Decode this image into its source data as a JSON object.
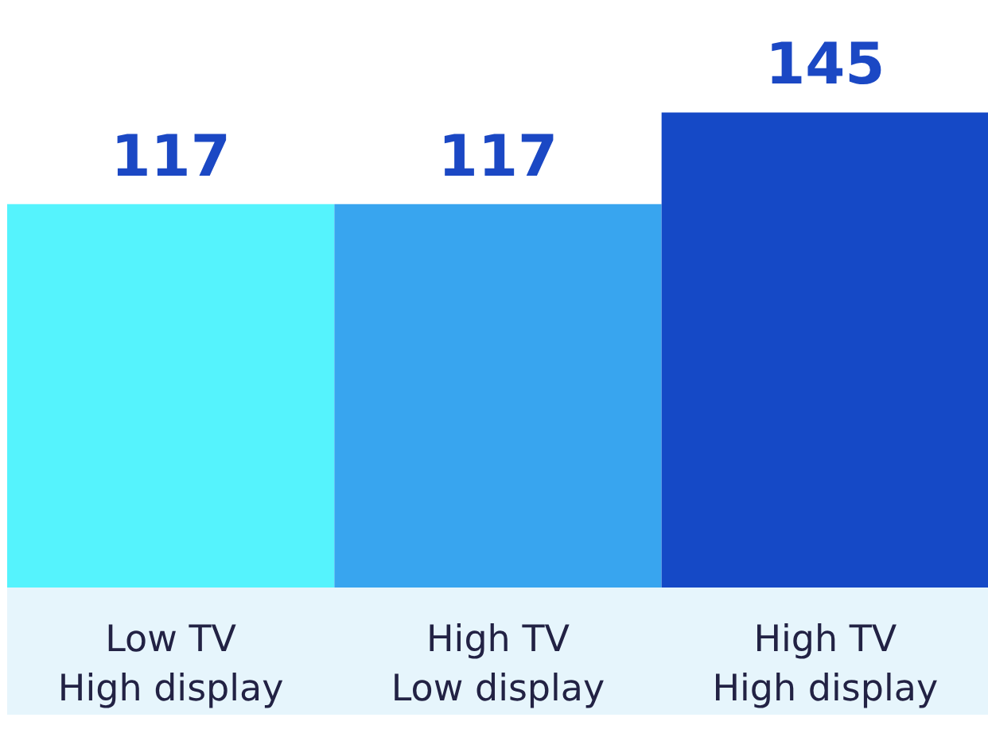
{
  "chart_data": {
    "type": "bar",
    "categories": [
      "Low TV\nHigh display",
      "High TV\nLow display",
      "High TV\nHigh display"
    ],
    "values": [
      117,
      117,
      145
    ],
    "colors": [
      "#55f3fd",
      "#38a5ef",
      "#1549c6"
    ],
    "data_labels": true,
    "grid": false
  }
}
